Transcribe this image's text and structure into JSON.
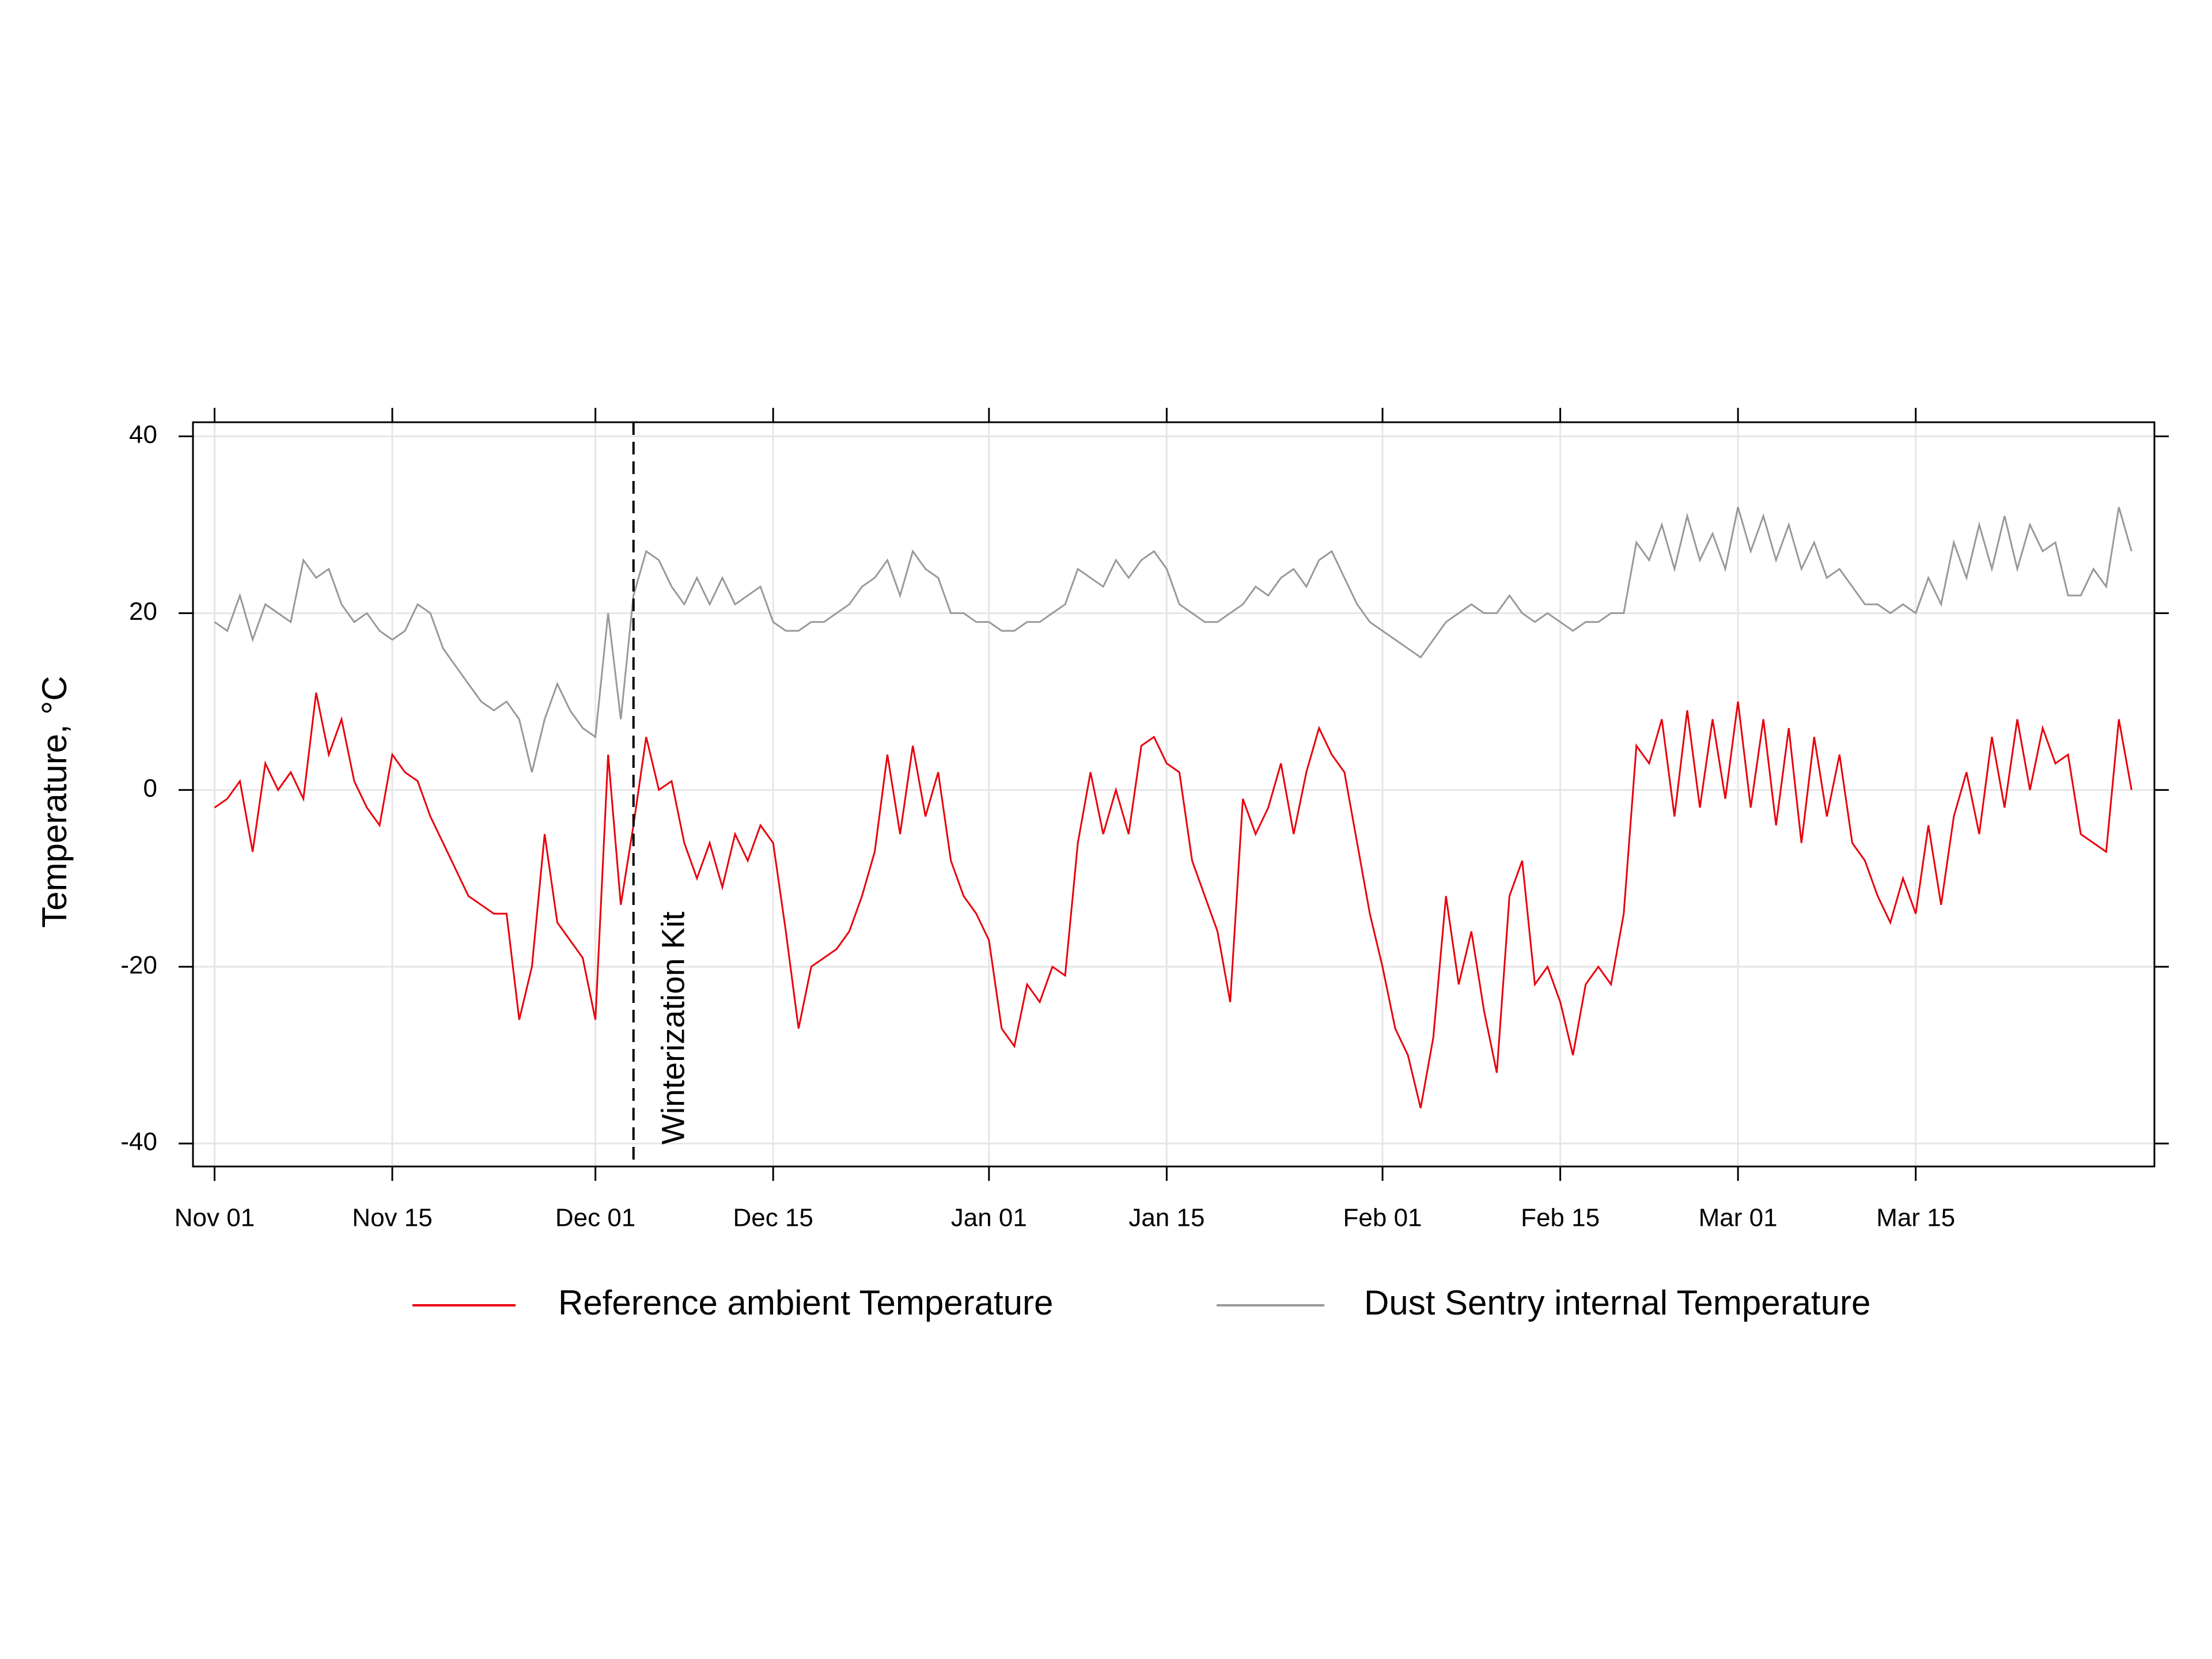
{
  "chart_data": {
    "type": "line",
    "y_label": "Temperature, °C",
    "x": [
      0,
      1,
      2,
      3,
      4,
      5,
      6,
      7,
      8,
      9,
      10,
      11,
      12,
      13,
      14,
      15,
      16,
      17,
      18,
      19,
      20,
      21,
      22,
      23,
      24,
      25,
      26,
      27,
      28,
      29,
      30,
      31,
      32,
      33,
      34,
      35,
      36,
      37,
      38,
      39,
      40,
      41,
      42,
      43,
      44,
      45,
      46,
      47,
      48,
      49,
      50,
      51,
      52,
      53,
      54,
      55,
      56,
      57,
      58,
      59,
      60,
      61,
      62,
      63,
      64,
      65,
      66,
      67,
      68,
      69,
      70,
      71,
      72,
      73,
      74,
      75,
      76,
      77,
      78,
      79,
      80,
      81,
      82,
      83,
      84,
      85,
      86,
      87,
      88,
      89,
      90,
      91,
      92,
      93,
      94,
      95,
      96,
      97,
      98,
      99,
      100,
      101,
      102,
      103,
      104,
      105,
      106,
      107,
      108,
      109,
      110,
      111,
      112,
      113,
      114,
      115,
      116,
      117,
      118,
      119,
      120,
      121,
      122,
      123,
      124,
      125,
      126,
      127,
      128,
      129,
      130,
      131,
      132,
      133,
      134,
      135,
      136,
      137,
      138,
      139,
      140,
      141,
      142,
      143,
      144,
      145,
      146,
      147,
      148,
      149,
      150,
      151
    ],
    "series": [
      {
        "name": "Reference ambient Temperature",
        "color": "#e8000b",
        "values": [
          -2,
          -1,
          1,
          -7,
          3,
          0,
          2,
          -1,
          11,
          4,
          8,
          1,
          -2,
          -4,
          4,
          2,
          1,
          -3,
          -6,
          -9,
          -12,
          -13,
          -14,
          -14,
          -26,
          -20,
          -5,
          -15,
          -17,
          -19,
          -26,
          4,
          -13,
          -4,
          6,
          0,
          1,
          -6,
          -10,
          -6,
          -11,
          -5,
          -8,
          -4,
          -6,
          -16,
          -27,
          -20,
          -19,
          -18,
          -16,
          -12,
          -7,
          4,
          -5,
          5,
          -3,
          2,
          -8,
          -12,
          -14,
          -17,
          -27,
          -29,
          -22,
          -24,
          -20,
          -21,
          -6,
          2,
          -5,
          0,
          -5,
          5,
          6,
          3,
          2,
          -8,
          -12,
          -16,
          -24,
          -1,
          -5,
          -2,
          3,
          -5,
          2,
          7,
          4,
          2,
          -6,
          -14,
          -20,
          -27,
          -30,
          -36,
          -28,
          -12,
          -22,
          -16,
          -25,
          -32,
          -12,
          -8,
          -22,
          -20,
          -24,
          -30,
          -22,
          -20,
          -22,
          -14,
          5,
          3,
          8,
          -3,
          9,
          -2,
          8,
          -1,
          10,
          -2,
          8,
          -4,
          7,
          -6,
          6,
          -3,
          4,
          -6,
          -8,
          -12,
          -15,
          -10,
          -14,
          -4,
          -13,
          -3,
          2,
          -5,
          6,
          -2,
          8,
          0,
          7,
          3,
          4,
          -5,
          -6,
          -7,
          8,
          0
        ]
      },
      {
        "name": "Dust Sentry internal Temperature",
        "color": "#999999",
        "values": [
          19,
          18,
          22,
          17,
          21,
          20,
          19,
          26,
          24,
          25,
          21,
          19,
          20,
          18,
          17,
          18,
          21,
          20,
          16,
          14,
          12,
          10,
          9,
          10,
          8,
          2,
          8,
          12,
          9,
          7,
          6,
          20,
          8,
          22,
          27,
          26,
          23,
          21,
          24,
          21,
          24,
          21,
          22,
          23,
          19,
          18,
          18,
          19,
          19,
          20,
          21,
          23,
          24,
          26,
          22,
          27,
          25,
          24,
          20,
          20,
          19,
          19,
          18,
          18,
          19,
          19,
          20,
          21,
          25,
          24,
          23,
          26,
          24,
          26,
          27,
          25,
          21,
          20,
          19,
          19,
          20,
          21,
          23,
          22,
          24,
          25,
          23,
          26,
          27,
          24,
          21,
          19,
          18,
          17,
          16,
          15,
          17,
          19,
          20,
          21,
          20,
          20,
          22,
          20,
          19,
          20,
          19,
          18,
          19,
          19,
          20,
          20,
          28,
          26,
          30,
          25,
          31,
          26,
          29,
          25,
          32,
          27,
          31,
          26,
          30,
          25,
          28,
          24,
          25,
          23,
          21,
          21,
          20,
          21,
          20,
          24,
          21,
          28,
          24,
          30,
          25,
          31,
          25,
          30,
          27,
          28,
          22,
          22,
          25,
          23,
          32,
          27
        ]
      }
    ],
    "xlim": [
      -1.7,
      152.8
    ],
    "xticks": [
      {
        "value": 0,
        "label": "Nov 01"
      },
      {
        "value": 14,
        "label": "Nov 15"
      },
      {
        "value": 30,
        "label": "Dec 01"
      },
      {
        "value": 44,
        "label": "Dec 15"
      },
      {
        "value": 61,
        "label": "Jan 01"
      },
      {
        "value": 75,
        "label": "Jan 15"
      },
      {
        "value": 92,
        "label": "Feb 01"
      },
      {
        "value": 106,
        "label": "Feb 15"
      },
      {
        "value": 120,
        "label": "Mar 01"
      },
      {
        "value": 134,
        "label": "Mar 15"
      }
    ],
    "ylim": [
      -42.6,
      41.6
    ],
    "yticks": [
      -40,
      -20,
      0,
      20,
      40
    ],
    "grid": true,
    "vline": {
      "x": 33,
      "label": "Winterization Kit"
    }
  }
}
